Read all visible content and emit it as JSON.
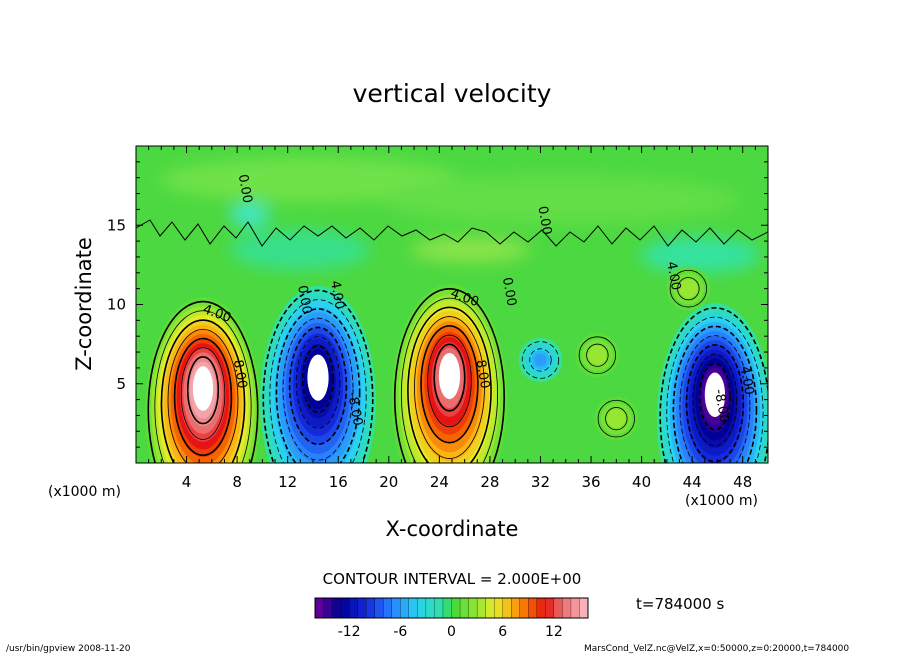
{
  "chart_data": {
    "type": "heatmap",
    "title": "vertical velocity",
    "xlabel": "X-coordinate",
    "ylabel": "Z-coordinate",
    "x_unit_left": "(x1000 m)",
    "x_unit_right": "(x1000 m)",
    "xlim": [
      0,
      50
    ],
    "ylim": [
      0,
      20
    ],
    "x_ticks": [
      4,
      8,
      12,
      16,
      20,
      24,
      28,
      32,
      36,
      40,
      44,
      48
    ],
    "y_ticks": [
      5,
      10,
      15
    ],
    "contour_interval_text": "CONTOUR INTERVAL = 2.000E+00",
    "contour_labels": [
      {
        "text": "4.00",
        "x": 6.4,
        "z": 9.4
      },
      {
        "text": "8.00",
        "x": 8.2,
        "z": 5.6
      },
      {
        "text": "0.00",
        "x": 8.6,
        "z": 17.3
      },
      {
        "text": "4.00",
        "x": 15.9,
        "z": 10.6
      },
      {
        "text": "0.00",
        "x": 13.3,
        "z": 10.3
      },
      {
        "text": "-8.00",
        "x": 17.3,
        "z": 3.4
      },
      {
        "text": "4.00",
        "x": 26.0,
        "z": 10.4
      },
      {
        "text": "8.00",
        "x": 27.4,
        "z": 5.6
      },
      {
        "text": "0.00",
        "x": 29.5,
        "z": 10.8
      },
      {
        "text": "0.00",
        "x": 32.3,
        "z": 15.3
      },
      {
        "text": "4.00",
        "x": 42.5,
        "z": 11.8
      },
      {
        "text": "4.00",
        "x": 48.3,
        "z": 5.2
      },
      {
        "text": "-8.00",
        "x": 46.3,
        "z": 3.6
      }
    ],
    "features": [
      {
        "kind": "updraft",
        "x": 5.3,
        "z": 4.8,
        "peak": 16
      },
      {
        "kind": "downdraft",
        "x": 14.4,
        "z": 5.5,
        "peak": -14
      },
      {
        "kind": "updraft",
        "x": 24.8,
        "z": 5.6,
        "peak": 14
      },
      {
        "kind": "downdraft",
        "x": 32.0,
        "z": 6.5,
        "peak": -6
      },
      {
        "kind": "updraft",
        "x": 36.5,
        "z": 6.8,
        "peak": 3
      },
      {
        "kind": "updraft",
        "x": 38.0,
        "z": 2.8,
        "peak": 3
      },
      {
        "kind": "downdraft",
        "x": 45.8,
        "z": 4.4,
        "peak": -16
      },
      {
        "kind": "updraft",
        "x": 43.7,
        "z": 11.0,
        "peak": 3
      }
    ],
    "colorbar": {
      "min": -16,
      "max": 16,
      "step": 1,
      "tick_labels": [
        -12,
        -6,
        0,
        6,
        12
      ],
      "tick_values": [
        -12,
        -6,
        0,
        6,
        12
      ]
    }
  },
  "time_text": "t=784000 s",
  "footer": {
    "left": "/usr/bin/gpview  2008-11-20",
    "right": "MarsCond_VelZ.nc@VelZ,x=0:50000,z=0:20000,t=784000"
  }
}
